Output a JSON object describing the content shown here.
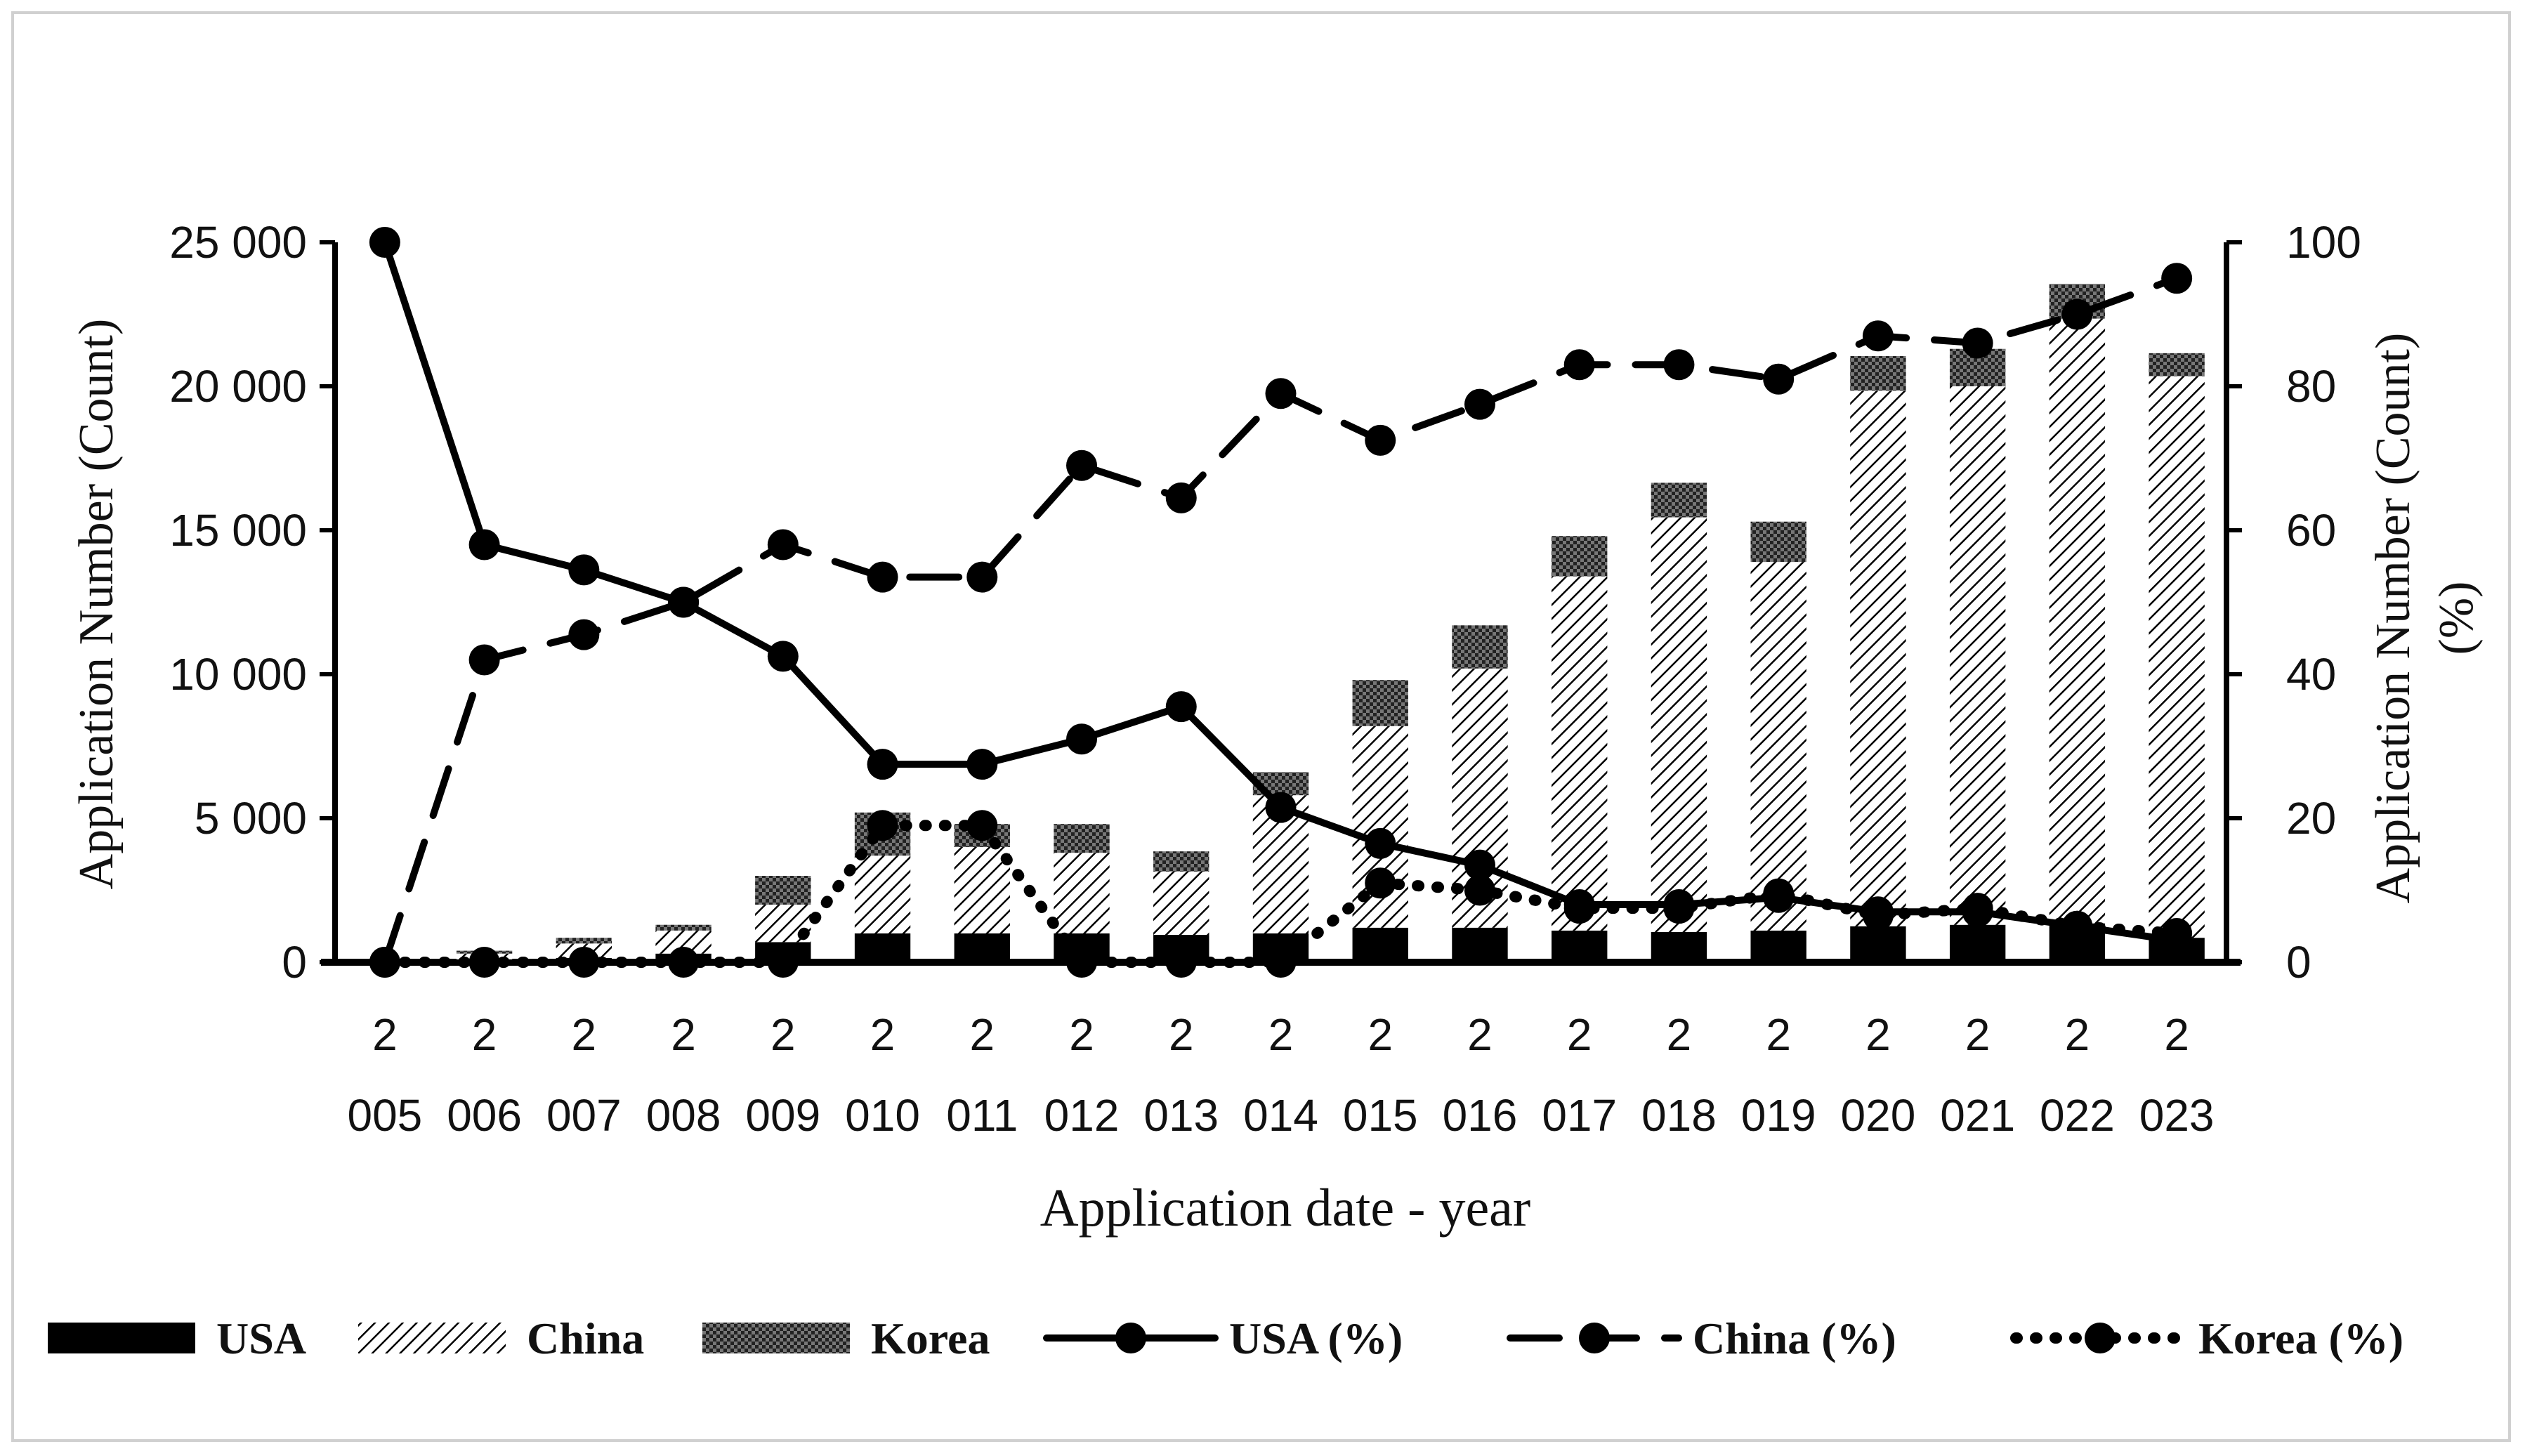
{
  "chart_data": {
    "type": "bar",
    "categories": [
      "2005",
      "2006",
      "2007",
      "2008",
      "2009",
      "2010",
      "2011",
      "2012",
      "2013",
      "2014",
      "2015",
      "2016",
      "2017",
      "2018",
      "2019",
      "2020",
      "2021",
      "2022",
      "2023"
    ],
    "category_labels_top": [
      "2",
      "2",
      "2",
      "2",
      "2",
      "2",
      "2",
      "2",
      "2",
      "2",
      "2",
      "2",
      "2",
      "2",
      "2",
      "2",
      "2",
      "2",
      "2"
    ],
    "category_labels_bottom": [
      "005",
      "006",
      "007",
      "008",
      "009",
      "010",
      "011",
      "012",
      "013",
      "014",
      "015",
      "016",
      "017",
      "018",
      "019",
      "020",
      "021",
      "022",
      "023"
    ],
    "bar_series": [
      {
        "name": "USA",
        "pattern": "solid",
        "values": [
          0,
          100,
          150,
          300,
          700,
          1000,
          1000,
          1000,
          950,
          1000,
          1200,
          1200,
          1100,
          1050,
          1100,
          1250,
          1300,
          1350,
          850
        ]
      },
      {
        "name": "China",
        "pattern": "diagonal",
        "values": [
          0,
          200,
          500,
          800,
          1300,
          2700,
          3000,
          2800,
          2200,
          4800,
          7000,
          9000,
          12300,
          14400,
          12800,
          18600,
          18700,
          21000,
          19500
        ]
      },
      {
        "name": "Korea",
        "pattern": "crosshatch",
        "values": [
          0,
          100,
          200,
          200,
          1000,
          1500,
          800,
          1000,
          700,
          800,
          1600,
          1500,
          1400,
          1200,
          1400,
          1200,
          1300,
          1200,
          800
        ]
      }
    ],
    "line_series": [
      {
        "name": "USA  (%)",
        "style": "solid",
        "values": [
          100,
          58,
          54.5,
          50,
          42.5,
          27.5,
          27.5,
          31,
          35.5,
          21.5,
          16.5,
          13.5,
          8,
          8,
          9,
          7,
          7,
          5,
          3
        ]
      },
      {
        "name": "China  (%)",
        "style": "dashed",
        "values": [
          0,
          42,
          45.5,
          50,
          58,
          53.5,
          53.5,
          69,
          64.5,
          79,
          72.5,
          77.5,
          83,
          83,
          81,
          87,
          86,
          90,
          95
        ]
      },
      {
        "name": "Korea  (%)",
        "style": "dotted",
        "values": [
          0,
          0,
          0,
          0,
          0,
          19,
          19,
          0,
          0,
          0,
          11,
          10,
          7.5,
          7.5,
          9.5,
          6.5,
          7.5,
          5,
          4
        ]
      }
    ],
    "ylabel": "Application Number (Count)",
    "y2label_line1": "Application Number (Count)",
    "y2label_line2": "(%)",
    "xlabel": "Application date - year",
    "ylim": [
      0,
      25000
    ],
    "y2lim": [
      0,
      100
    ],
    "y_ticks": [
      "0",
      "5 000",
      "10 000",
      "15 000",
      "20 000",
      "25 000"
    ],
    "y2_ticks": [
      "0",
      "20",
      "40",
      "60",
      "80",
      "100"
    ],
    "legend_position": "bottom",
    "grid": false,
    "colors": {
      "ink": "#000000",
      "frame": "#d0d0d0"
    }
  }
}
